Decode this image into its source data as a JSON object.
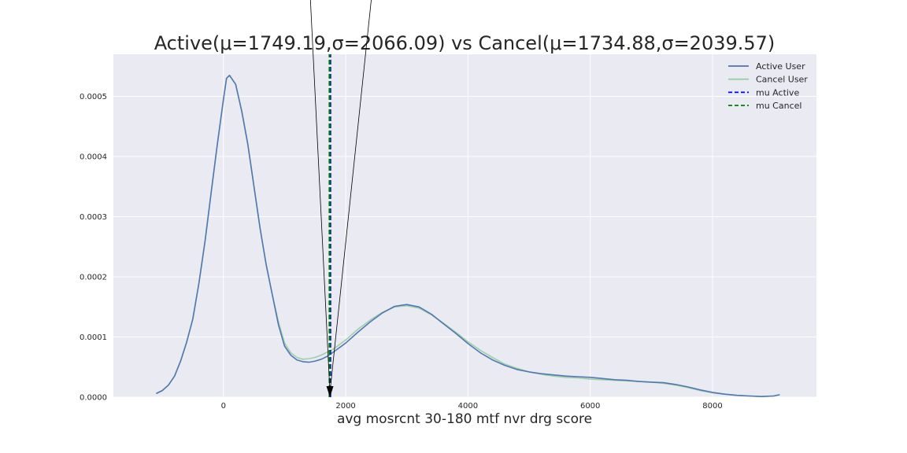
{
  "chart_data": {
    "type": "line",
    "title": "Active(μ=1749.19,σ=2066.09) vs Cancel(μ=1734.88,σ=2039.57)",
    "xlabel": "avg mosrcnt 30-180 mtf nvr drg score",
    "ylabel": "",
    "xlim": [
      -1800,
      9700
    ],
    "ylim": [
      0,
      0.00057
    ],
    "xticks": [
      0,
      2000,
      4000,
      6000,
      8000
    ],
    "xtick_labels": [
      "0",
      "2000",
      "4000",
      "6000",
      "8000"
    ],
    "yticks": [
      0,
      0.0001,
      0.0002,
      0.0003,
      0.0004,
      0.0005
    ],
    "ytick_labels": [
      "0.0000",
      "0.0001",
      "0.0002",
      "0.0003",
      "0.0004",
      "0.0005"
    ],
    "grid": true,
    "legend_position": "top-right",
    "series": [
      {
        "name": "Active User",
        "color": "#4c72b0",
        "x": [
          -1100,
          -1000,
          -900,
          -800,
          -700,
          -600,
          -500,
          -400,
          -300,
          -200,
          -100,
          0,
          50,
          100,
          200,
          300,
          400,
          500,
          600,
          700,
          800,
          900,
          1000,
          1100,
          1200,
          1300,
          1400,
          1500,
          1600,
          1700,
          1800,
          2000,
          2200,
          2400,
          2600,
          2800,
          3000,
          3200,
          3400,
          3600,
          3800,
          4000,
          4200,
          4400,
          4600,
          4800,
          5000,
          5200,
          5400,
          5600,
          5800,
          6000,
          6200,
          6400,
          6600,
          6800,
          7000,
          7200,
          7400,
          7600,
          7800,
          8000,
          8200,
          8400,
          8600,
          8800,
          9000,
          9100
        ],
        "y": [
          6e-06,
          1.1e-05,
          2e-05,
          3.5e-05,
          6e-05,
          9.2e-05,
          0.00013,
          0.00019,
          0.00026,
          0.00034,
          0.00042,
          0.000495,
          0.00053,
          0.000535,
          0.00052,
          0.000475,
          0.00042,
          0.00035,
          0.00028,
          0.00022,
          0.00017,
          0.00012,
          8.5e-05,
          7e-05,
          6.2e-05,
          5.9e-05,
          5.8e-05,
          6e-05,
          6.3e-05,
          6.8e-05,
          7.5e-05,
          9e-05,
          0.000108,
          0.000125,
          0.00014,
          0.000151,
          0.000154,
          0.00015,
          0.000138,
          0.000122,
          0.000106,
          8.9e-05,
          7.4e-05,
          6.2e-05,
          5.3e-05,
          4.6e-05,
          4.2e-05,
          3.9e-05,
          3.7e-05,
          3.5e-05,
          3.4e-05,
          3.3e-05,
          3.1e-05,
          2.9e-05,
          2.8e-05,
          2.6e-05,
          2.5e-05,
          2.4e-05,
          2.1e-05,
          1.7e-05,
          1.2e-05,
          8e-06,
          5e-06,
          3e-06,
          2e-06,
          1e-06,
          2e-06,
          4e-06
        ]
      },
      {
        "name": "Cancel User",
        "color": "#98cfa4",
        "x": [
          -1100,
          -1000,
          -900,
          -800,
          -700,
          -600,
          -500,
          -400,
          -300,
          -200,
          -100,
          0,
          50,
          100,
          200,
          300,
          400,
          500,
          600,
          700,
          800,
          900,
          1000,
          1100,
          1200,
          1300,
          1400,
          1500,
          1600,
          1700,
          1800,
          2000,
          2200,
          2400,
          2600,
          2800,
          3000,
          3200,
          3400,
          3600,
          3800,
          4000,
          4200,
          4400,
          4600,
          4800,
          5000,
          5200,
          5400,
          5600,
          5800,
          6000,
          6200,
          6400,
          6600,
          6800,
          7000,
          7200,
          7400,
          7600,
          7800,
          8000,
          8200,
          8400,
          8600,
          8800,
          9000,
          9100
        ],
        "y": [
          6e-06,
          1.1e-05,
          2e-05,
          3.5e-05,
          6e-05,
          9.2e-05,
          0.00013,
          0.00019,
          0.00026,
          0.00034,
          0.00042,
          0.000495,
          0.00053,
          0.000535,
          0.00052,
          0.000475,
          0.00042,
          0.00035,
          0.00028,
          0.00022,
          0.00017,
          0.000125,
          9e-05,
          7.4e-05,
          6.6e-05,
          6.3e-05,
          6.4e-05,
          6.6e-05,
          7e-05,
          7.5e-05,
          8e-05,
          9.5e-05,
          0.000113,
          0.000128,
          0.000141,
          0.00015,
          0.000152,
          0.000148,
          0.000137,
          0.000123,
          0.000108,
          9.2e-05,
          7.8e-05,
          6.6e-05,
          5.5e-05,
          4.8e-05,
          4.2e-05,
          3.8e-05,
          3.5e-05,
          3.3e-05,
          3.2e-05,
          3e-05,
          2.9e-05,
          2.8e-05,
          2.7e-05,
          2.6e-05,
          2.5e-05,
          2.3e-05,
          2e-05,
          1.6e-05,
          1.1e-05,
          7e-06,
          5e-06,
          3e-06,
          2e-06,
          1e-06,
          2e-06,
          4e-06
        ]
      }
    ],
    "vlines": [
      {
        "name": "mu Active",
        "x": 1749.19,
        "color": "#0000ff",
        "style": "dashed"
      },
      {
        "name": "mu Cancel",
        "x": 1734.88,
        "color": "#008000",
        "style": "dashed"
      }
    ],
    "annotation": {
      "x": 1742,
      "y": 0,
      "color": "#000000"
    },
    "legend": [
      {
        "label": "Active User",
        "color": "#4c72b0",
        "style": "solid"
      },
      {
        "label": "Cancel User",
        "color": "#98cfa4",
        "style": "solid"
      },
      {
        "label": "mu Active",
        "color": "#0000ff",
        "style": "dashed"
      },
      {
        "label": "mu Cancel",
        "color": "#008000",
        "style": "dashed"
      }
    ],
    "colors": {
      "plot_background": "#eaeaf2",
      "grid": "#ffffff"
    }
  }
}
